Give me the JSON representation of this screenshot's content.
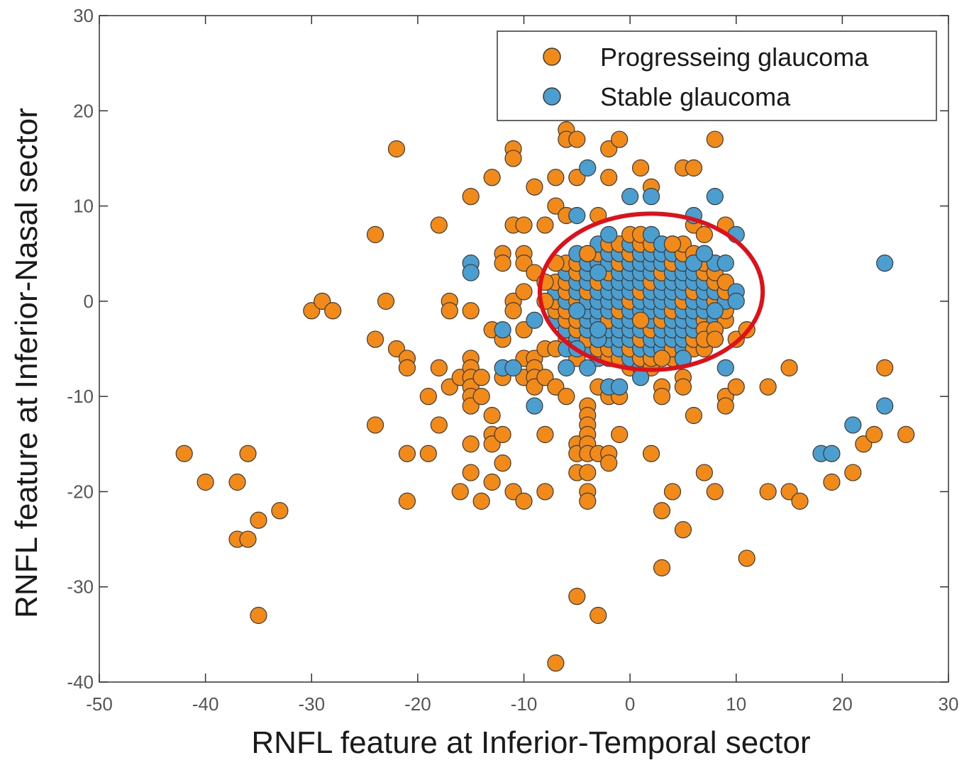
{
  "chart_data": {
    "type": "scatter",
    "xlabel": "RNFL feature at Inferior-Temporal sector",
    "ylabel": "RNFL feature at Inferior-Nasal sector",
    "xlim": [
      -50,
      30
    ],
    "ylim": [
      -40,
      30
    ],
    "xticks": [
      "-50",
      "-40",
      "-30",
      "-20",
      "-10",
      "0",
      "10",
      "20",
      "30"
    ],
    "yticks": [
      "-40",
      "-30",
      "-20",
      "-10",
      "0",
      "10",
      "20",
      "30"
    ],
    "legend_position": "top-right",
    "grid": false,
    "annotation": {
      "shape": "ellipse",
      "color": "#e0101a",
      "center": [
        2,
        1
      ],
      "radius_x": 10.5,
      "radius_y": 8.2
    },
    "series": [
      {
        "name": "Progresseing glaucoma",
        "color": "#f28a1a",
        "points": [
          [
            -42,
            -16
          ],
          [
            -40,
            -19
          ],
          [
            -37,
            -19
          ],
          [
            -37,
            -25
          ],
          [
            -36,
            -25
          ],
          [
            -36,
            -16
          ],
          [
            -35,
            -23
          ],
          [
            -35,
            -33
          ],
          [
            -33,
            -22
          ],
          [
            -30,
            -1
          ],
          [
            -29,
            0
          ],
          [
            -28,
            -1
          ],
          [
            -24,
            7
          ],
          [
            -24,
            -4
          ],
          [
            -24,
            -13
          ],
          [
            -23,
            0
          ],
          [
            -22,
            16
          ],
          [
            -22,
            -5
          ],
          [
            -21,
            -6
          ],
          [
            -21,
            -7
          ],
          [
            -21,
            -16
          ],
          [
            -21,
            -21
          ],
          [
            -19,
            -10
          ],
          [
            -19,
            -16
          ],
          [
            -18,
            8
          ],
          [
            -18,
            -7
          ],
          [
            -18,
            -13
          ],
          [
            -17,
            -9
          ],
          [
            -17,
            0
          ],
          [
            -17,
            -1
          ],
          [
            -16,
            -8
          ],
          [
            -16,
            -20
          ],
          [
            -15,
            11
          ],
          [
            -15,
            -1
          ],
          [
            -15,
            -6
          ],
          [
            -15,
            -7
          ],
          [
            -15,
            -8
          ],
          [
            -15,
            -9
          ],
          [
            -15,
            -10
          ],
          [
            -15,
            -11
          ],
          [
            -15,
            -15
          ],
          [
            -15,
            -18
          ],
          [
            -14,
            -8
          ],
          [
            -14,
            -21
          ],
          [
            -14,
            -10
          ],
          [
            -13,
            13
          ],
          [
            -13,
            -3
          ],
          [
            -13,
            -12
          ],
          [
            -13,
            -14
          ],
          [
            -13,
            -15
          ],
          [
            -13,
            -19
          ],
          [
            -12,
            5
          ],
          [
            -12,
            4
          ],
          [
            -12,
            -8
          ],
          [
            -12,
            -14
          ],
          [
            -12,
            -17
          ],
          [
            -12,
            -4
          ],
          [
            -11,
            16
          ],
          [
            -11,
            15
          ],
          [
            -11,
            8
          ],
          [
            -11,
            0
          ],
          [
            -11,
            -20
          ],
          [
            -11,
            -1
          ],
          [
            -10,
            8
          ],
          [
            -10,
            5
          ],
          [
            -10,
            4
          ],
          [
            -10,
            1
          ],
          [
            -10,
            -3
          ],
          [
            -10,
            -6
          ],
          [
            -10,
            -8
          ],
          [
            -10,
            -21
          ],
          [
            -9,
            12
          ],
          [
            -9,
            3
          ],
          [
            -9,
            -6
          ],
          [
            -9,
            -7
          ],
          [
            -9,
            -8
          ],
          [
            -9,
            -9
          ],
          [
            -8,
            8
          ],
          [
            -8,
            2
          ],
          [
            -8,
            0
          ],
          [
            -8,
            -5
          ],
          [
            -8,
            -8
          ],
          [
            -8,
            -14
          ],
          [
            -8,
            -20
          ],
          [
            -7,
            13
          ],
          [
            -7,
            10
          ],
          [
            -7,
            4
          ],
          [
            -7,
            -5
          ],
          [
            -7,
            -9
          ],
          [
            -7,
            -38
          ],
          [
            -6,
            18
          ],
          [
            -6,
            17
          ],
          [
            -6,
            9
          ],
          [
            -6,
            -10
          ],
          [
            -5,
            17
          ],
          [
            -5,
            13
          ],
          [
            -5,
            -6
          ],
          [
            -5,
            -15
          ],
          [
            -5,
            -16
          ],
          [
            -5,
            -18
          ],
          [
            -5,
            -31
          ],
          [
            -4,
            5
          ],
          [
            -4,
            -11
          ],
          [
            -4,
            -12
          ],
          [
            -4,
            -13
          ],
          [
            -4,
            -14
          ],
          [
            -4,
            -15
          ],
          [
            -4,
            -16
          ],
          [
            -4,
            -18
          ],
          [
            -4,
            -20
          ],
          [
            -4,
            -21
          ],
          [
            -3,
            9
          ],
          [
            -3,
            -9
          ],
          [
            -3,
            -16
          ],
          [
            -3,
            -33
          ],
          [
            -2,
            16
          ],
          [
            -2,
            13
          ],
          [
            -2,
            -10
          ],
          [
            -2,
            -16
          ],
          [
            -2,
            -17
          ],
          [
            -1,
            17
          ],
          [
            -1,
            -10
          ],
          [
            -1,
            -14
          ],
          [
            1,
            14
          ],
          [
            1,
            -2
          ],
          [
            2,
            12
          ],
          [
            2,
            -16
          ],
          [
            3,
            -6
          ],
          [
            3,
            -9
          ],
          [
            3,
            -10
          ],
          [
            3,
            -22
          ],
          [
            3,
            -28
          ],
          [
            4,
            6
          ],
          [
            4,
            -20
          ],
          [
            5,
            14
          ],
          [
            5,
            -8
          ],
          [
            5,
            -9
          ],
          [
            5,
            -24
          ],
          [
            6,
            14
          ],
          [
            6,
            8
          ],
          [
            6,
            -12
          ],
          [
            7,
            7
          ],
          [
            7,
            5
          ],
          [
            7,
            -3
          ],
          [
            7,
            -4
          ],
          [
            7,
            -18
          ],
          [
            8,
            17
          ],
          [
            8,
            -3
          ],
          [
            8,
            -4
          ],
          [
            8,
            -20
          ],
          [
            9,
            8
          ],
          [
            9,
            2
          ],
          [
            9,
            -10
          ],
          [
            9,
            -11
          ],
          [
            10,
            -9
          ],
          [
            10,
            -4
          ],
          [
            11,
            -3
          ],
          [
            11,
            -27
          ],
          [
            13,
            -9
          ],
          [
            13,
            -20
          ],
          [
            15,
            -7
          ],
          [
            15,
            -20
          ],
          [
            16,
            -21
          ],
          [
            19,
            -19
          ],
          [
            21,
            -18
          ],
          [
            22,
            -15
          ],
          [
            23,
            -14
          ],
          [
            24,
            -7
          ],
          [
            26,
            -14
          ]
        ]
      },
      {
        "name": "Stable glaucoma",
        "color": "#4a9fd0",
        "points": [
          [
            -15,
            4
          ],
          [
            -15,
            3
          ],
          [
            -12,
            -3
          ],
          [
            -12,
            -7
          ],
          [
            -11,
            -7
          ],
          [
            -9,
            -2
          ],
          [
            -9,
            -11
          ],
          [
            -6,
            -5
          ],
          [
            -6,
            -7
          ],
          [
            -5,
            9
          ],
          [
            -5,
            -1
          ],
          [
            -5,
            -5
          ],
          [
            -4,
            14
          ],
          [
            -4,
            -7
          ],
          [
            -3,
            -4
          ],
          [
            -3,
            3
          ],
          [
            -3,
            -3
          ],
          [
            -2,
            7
          ],
          [
            -2,
            -9
          ],
          [
            -1,
            -9
          ],
          [
            0,
            11
          ],
          [
            1,
            -8
          ],
          [
            2,
            11
          ],
          [
            5,
            -6
          ],
          [
            6,
            9
          ],
          [
            6,
            4
          ],
          [
            7,
            5
          ],
          [
            8,
            11
          ],
          [
            8,
            -1
          ],
          [
            9,
            4
          ],
          [
            10,
            7
          ],
          [
            10,
            1
          ],
          [
            10,
            0
          ],
          [
            9,
            -7
          ],
          [
            18,
            -16
          ],
          [
            19,
            -16
          ],
          [
            21,
            -13
          ],
          [
            24,
            4
          ],
          [
            24,
            -11
          ]
        ]
      }
    ]
  }
}
